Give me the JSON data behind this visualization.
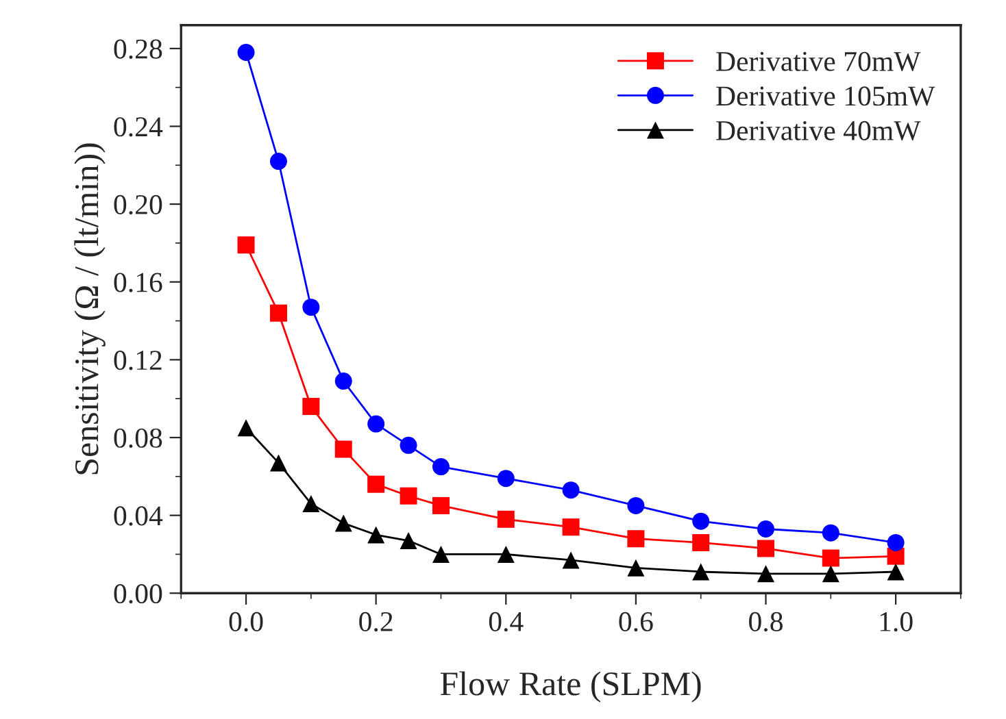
{
  "chart_data": {
    "type": "line",
    "xlabel": "Flow Rate (SLPM)",
    "ylabel": "Sensitivity (Ω / (lt/min))",
    "x": [
      0.0,
      0.05,
      0.1,
      0.15,
      0.2,
      0.25,
      0.3,
      0.4,
      0.5,
      0.6,
      0.7,
      0.8,
      0.9,
      1.0
    ],
    "series": [
      {
        "name": "Derivative 70mW",
        "color": "#ff0000",
        "marker": "square",
        "values": [
          0.179,
          0.144,
          0.096,
          0.074,
          0.056,
          0.05,
          0.045,
          0.038,
          0.034,
          0.028,
          0.026,
          0.023,
          0.018,
          0.019
        ]
      },
      {
        "name": "Derivative 105mW",
        "color": "#0000ff",
        "marker": "circle",
        "values": [
          0.278,
          0.222,
          0.147,
          0.109,
          0.087,
          0.076,
          0.065,
          0.059,
          0.053,
          0.045,
          0.037,
          0.033,
          0.031,
          0.026
        ]
      },
      {
        "name": "Derivative 40mW",
        "color": "#000000",
        "marker": "triangle",
        "values": [
          0.085,
          0.067,
          0.046,
          0.036,
          0.03,
          0.027,
          0.02,
          0.02,
          0.017,
          0.013,
          0.011,
          0.01,
          0.01,
          0.011
        ]
      }
    ],
    "xlim": [
      -0.1,
      1.1
    ],
    "ylim": [
      0,
      0.292
    ],
    "xticks": [
      {
        "value": 0.0,
        "label": "0.0"
      },
      {
        "value": 0.2,
        "label": "0.2"
      },
      {
        "value": 0.4,
        "label": "0.4"
      },
      {
        "value": 0.6,
        "label": "0.6"
      },
      {
        "value": 0.8,
        "label": "0.8"
      },
      {
        "value": 1.0,
        "label": "1.0"
      }
    ],
    "yticks": [
      {
        "value": 0.0,
        "label": "0.00"
      },
      {
        "value": 0.04,
        "label": "0.04"
      },
      {
        "value": 0.08,
        "label": "0.08"
      },
      {
        "value": 0.12,
        "label": "0.12"
      },
      {
        "value": 0.16,
        "label": "0.16"
      },
      {
        "value": 0.2,
        "label": "0.20"
      },
      {
        "value": 0.24,
        "label": "0.24"
      },
      {
        "value": 0.28,
        "label": "0.28"
      }
    ],
    "grid": false,
    "legend": "top right",
    "line_style": "solid"
  }
}
